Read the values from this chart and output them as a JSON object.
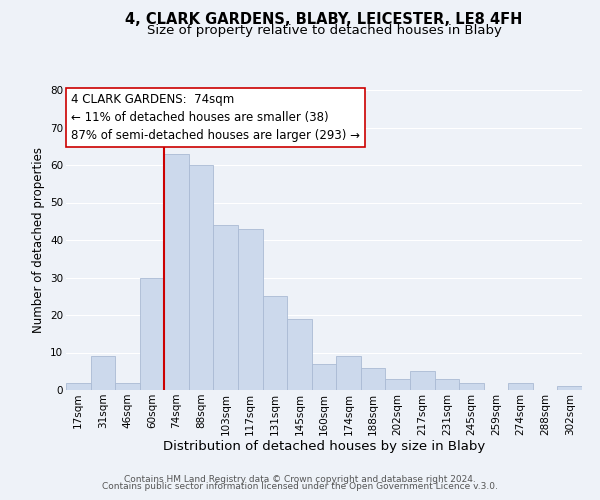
{
  "title": "4, CLARK GARDENS, BLABY, LEICESTER, LE8 4FH",
  "subtitle": "Size of property relative to detached houses in Blaby",
  "xlabel": "Distribution of detached houses by size in Blaby",
  "ylabel": "Number of detached properties",
  "bar_color": "#ccd9ec",
  "bar_edge_color": "#aabbd4",
  "background_color": "#eef2f8",
  "grid_color": "#ffffff",
  "categories": [
    "17sqm",
    "31sqm",
    "46sqm",
    "60sqm",
    "74sqm",
    "88sqm",
    "103sqm",
    "117sqm",
    "131sqm",
    "145sqm",
    "160sqm",
    "174sqm",
    "188sqm",
    "202sqm",
    "217sqm",
    "231sqm",
    "245sqm",
    "259sqm",
    "274sqm",
    "288sqm",
    "302sqm"
  ],
  "values": [
    2,
    9,
    2,
    30,
    63,
    60,
    44,
    43,
    25,
    19,
    7,
    9,
    6,
    3,
    5,
    3,
    2,
    0,
    2,
    0,
    1
  ],
  "vline_idx": 4,
  "vline_color": "#cc0000",
  "annotation_title": "4 CLARK GARDENS:  74sqm",
  "annotation_line1": "← 11% of detached houses are smaller (38)",
  "annotation_line2": "87% of semi-detached houses are larger (293) →",
  "ylim": [
    0,
    80
  ],
  "yticks": [
    0,
    10,
    20,
    30,
    40,
    50,
    60,
    70,
    80
  ],
  "footer1": "Contains HM Land Registry data © Crown copyright and database right 2024.",
  "footer2": "Contains public sector information licensed under the Open Government Licence v.3.0.",
  "title_fontsize": 10.5,
  "subtitle_fontsize": 9.5,
  "xlabel_fontsize": 9.5,
  "ylabel_fontsize": 8.5,
  "tick_fontsize": 7.5,
  "annotation_fontsize": 8.5,
  "footer_fontsize": 6.5
}
